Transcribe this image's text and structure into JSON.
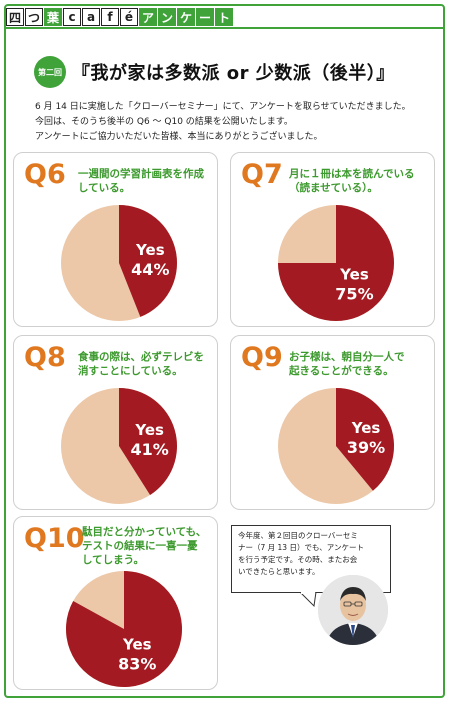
{
  "header": {
    "chars": [
      "四",
      "つ",
      "葉",
      "c",
      "a",
      "f",
      "é",
      "ア",
      "ン",
      "ケ",
      "ー",
      "ト"
    ]
  },
  "badge": "第二回",
  "title": "『我が家は多数派 or 少数派（後半）』",
  "intro": [
    "6 月 14 日に実施した「クローバーセミナー」にて、アンケートを取らせていただきました。",
    "今回は、そのうち後半の Q6 ～ Q10 の結果を公開いたします。",
    "アンケートにご協力いただいた皆様、本当にありがとうございました。"
  ],
  "colors": {
    "yes": "#a31a22",
    "no": "#ecc8a8",
    "accent": "#e0781f",
    "green": "#3fa33a"
  },
  "chart_data": [
    {
      "type": "pie",
      "id": "Q6",
      "title": "一週間の学習計画表を作成している。",
      "categories": [
        "Yes",
        ""
      ],
      "values": [
        44,
        56
      ],
      "label": "Yes",
      "label_value": "44%"
    },
    {
      "type": "pie",
      "id": "Q7",
      "title": "月に１冊は本を読んでいる（読ませている）。",
      "categories": [
        "Yes",
        ""
      ],
      "values": [
        75,
        25
      ],
      "label": "Yes",
      "label_value": "75%"
    },
    {
      "type": "pie",
      "id": "Q8",
      "title": "食事の際は、必ずテレビを消すことにしている。",
      "categories": [
        "Yes",
        ""
      ],
      "values": [
        41,
        59
      ],
      "label": "Yes",
      "label_value": "41%"
    },
    {
      "type": "pie",
      "id": "Q9",
      "title": "お子様は、朝自分一人で起きることができる。",
      "categories": [
        "Yes",
        ""
      ],
      "values": [
        39,
        61
      ],
      "label": "Yes",
      "label_value": "39%"
    },
    {
      "type": "pie",
      "id": "Q10",
      "title": "駄目だと分かっていても、テストの結果に一喜一憂してしまう。",
      "categories": [
        "Yes",
        ""
      ],
      "values": [
        83,
        17
      ],
      "label": "Yes",
      "label_value": "83%"
    }
  ],
  "qtexts": {
    "Q6": [
      "一週間の学習計画表を作成",
      "している。"
    ],
    "Q7": [
      "月に１冊は本を読んでいる",
      "（読ませている）。"
    ],
    "Q8": [
      "食事の際は、必ずテレビを",
      "消すことにしている。"
    ],
    "Q9": [
      "お子様は、朝自分一人で",
      "起きることができる。"
    ],
    "Q10": [
      "駄目だと分かっていても、",
      "テストの結果に一喜一憂",
      "してしまう。"
    ]
  },
  "bubble": [
    "今年度、第２回目のクローバーセミ",
    "ナー（7 月 13 日）でも、アンケート",
    "を行う予定です。その時、またお会",
    "いできたらと思います。"
  ]
}
